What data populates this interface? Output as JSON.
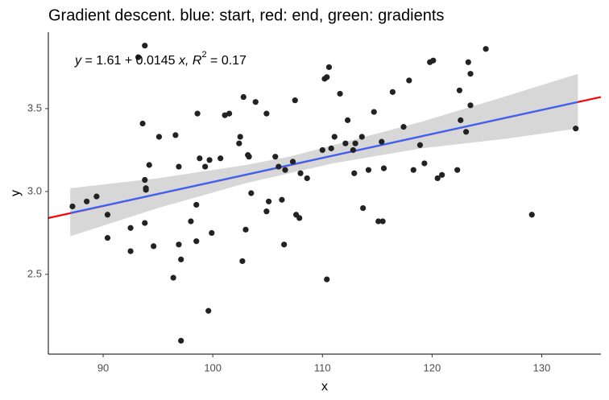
{
  "chart_data": {
    "type": "scatter",
    "title": "Gradient descent. blue: start, red: end, green: gradients",
    "xlabel": "x",
    "ylabel": "y",
    "annotation": {
      "lhs": "y",
      "equation": " = 1.61 + 0.0145 ",
      "var": "x",
      "sep": ", R",
      "sup": "2",
      "rest": " = 0.17"
    },
    "xlim": [
      85,
      135.4
    ],
    "ylim": [
      2.019,
      3.961
    ],
    "xticks": [
      90,
      100,
      110,
      120,
      130
    ],
    "yticks": [
      2.5,
      {
        "value": 3,
        "label": "3.0"
      },
      3.5
    ],
    "grid": false,
    "band": {
      "color": "#d3d3d3",
      "x": [
        87,
        95,
        103,
        107,
        111,
        119,
        127,
        133.3
      ],
      "upper": [
        3.02,
        3.08,
        3.16,
        3.21,
        3.28,
        3.42,
        3.58,
        3.71
      ],
      "lower": [
        2.73,
        2.9,
        3.05,
        3.11,
        3.17,
        3.26,
        3.32,
        3.38
      ]
    },
    "lines": [
      {
        "color": "#ff0000",
        "x": [
          85,
          135.4
        ],
        "values": [
          2.84,
          3.57
        ]
      },
      {
        "color": "#3366ff",
        "x": [
          87,
          133.3
        ],
        "values": [
          2.87,
          3.54
        ]
      }
    ],
    "series": [
      {
        "color": "#222222",
        "x": [
          87.2,
          88.5,
          89.4,
          90.4,
          90.4,
          92.5,
          92.5,
          93.6,
          93.2,
          93.8,
          93.8,
          93.9,
          93.9,
          93.8,
          94.2,
          94.6,
          95.1,
          96.4,
          96.6,
          96.9,
          96.9,
          97.1,
          97.1,
          98.0,
          98.5,
          98.5,
          98.6,
          98.8,
          99.3,
          99.7,
          99.9,
          99.6,
          100.7,
          101.1,
          101.5,
          102.4,
          102.5,
          102.7,
          102.8,
          103.0,
          103.2,
          103.3,
          103.5,
          103.9,
          104.9,
          104.9,
          105.1,
          105.7,
          106.0,
          106.3,
          106.5,
          106.6,
          107.3,
          107.5,
          107.6,
          107.9,
          108.0,
          108.6,
          110.0,
          110.2,
          110.4,
          110.4,
          110.6,
          110.8,
          111.1,
          111.6,
          112.1,
          112.3,
          112.8,
          112.9,
          113.0,
          113.6,
          113.7,
          114.2,
          114.7,
          115.1,
          115.4,
          115.5,
          115.6,
          116.4,
          117.4,
          117.9,
          118.3,
          118.9,
          119.3,
          119.8,
          120.1,
          120.5,
          120.9,
          122.3,
          122.5,
          122.6,
          123.1,
          123.3,
          123.5,
          123.5,
          124.9,
          129.1,
          133.1
        ],
        "values": [
          2.91,
          2.94,
          2.97,
          2.86,
          2.72,
          2.78,
          2.64,
          3.41,
          3.81,
          3.88,
          3.07,
          3.02,
          3.01,
          2.81,
          3.16,
          2.67,
          3.33,
          2.48,
          3.34,
          3.15,
          2.68,
          2.59,
          2.1,
          2.82,
          2.92,
          2.7,
          3.47,
          3.2,
          3.15,
          3.19,
          2.75,
          2.28,
          3.2,
          3.46,
          3.47,
          3.29,
          3.33,
          2.58,
          3.57,
          2.77,
          3.22,
          3.21,
          2.99,
          3.54,
          2.88,
          3.47,
          2.94,
          3.21,
          3.15,
          2.95,
          2.68,
          3.13,
          3.18,
          3.55,
          2.86,
          2.84,
          3.11,
          3.08,
          3.25,
          3.68,
          2.47,
          3.69,
          3.75,
          3.26,
          3.33,
          3.59,
          3.29,
          3.43,
          3.25,
          3.11,
          3.29,
          3.33,
          2.9,
          3.13,
          3.48,
          2.82,
          3.3,
          2.82,
          3.14,
          3.6,
          3.39,
          3.67,
          3.13,
          3.28,
          3.17,
          3.78,
          3.79,
          3.08,
          3.1,
          3.13,
          3.61,
          3.43,
          3.36,
          3.78,
          3.71,
          3.52,
          3.86,
          2.86,
          3.38
        ]
      }
    ]
  }
}
